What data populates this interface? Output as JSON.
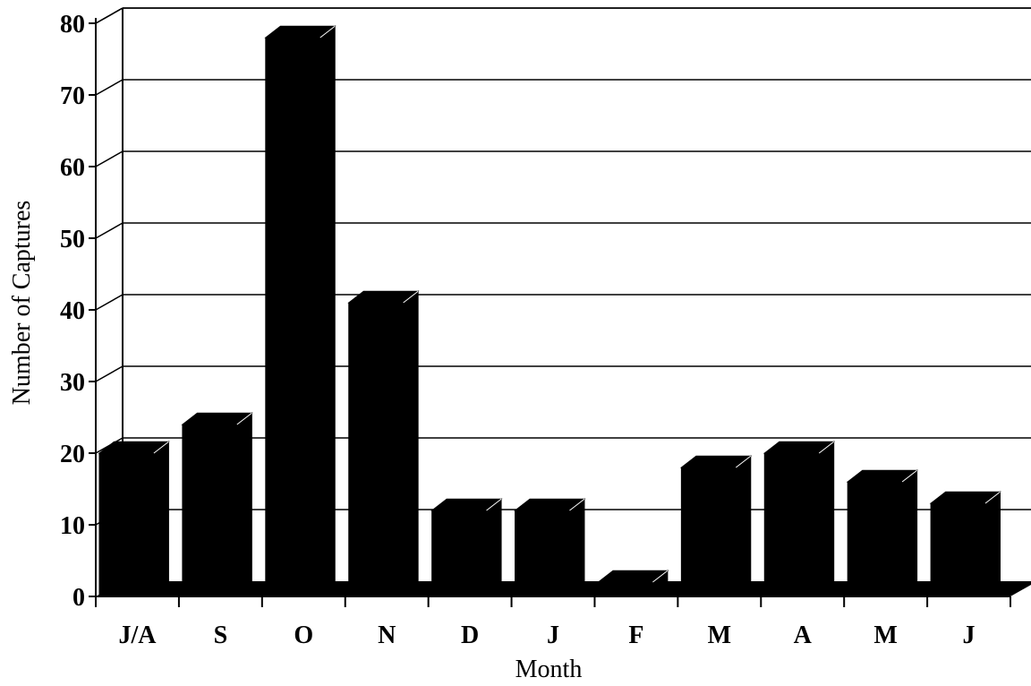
{
  "chart_data": {
    "type": "bar",
    "title": "",
    "xlabel": "Month",
    "ylabel": "Number of Captures",
    "categories": [
      "J/A",
      "S",
      "O",
      "N",
      "D",
      "J",
      "F",
      "M",
      "A",
      "M",
      "J"
    ],
    "values": [
      20,
      24,
      78,
      41,
      12,
      12,
      2,
      18,
      20,
      16,
      13
    ],
    "ylim": [
      0,
      80
    ],
    "yticks": [
      0,
      10,
      20,
      30,
      40,
      50,
      60,
      70,
      80
    ],
    "grid": true,
    "three_d": true,
    "bar_color": "#000000"
  }
}
